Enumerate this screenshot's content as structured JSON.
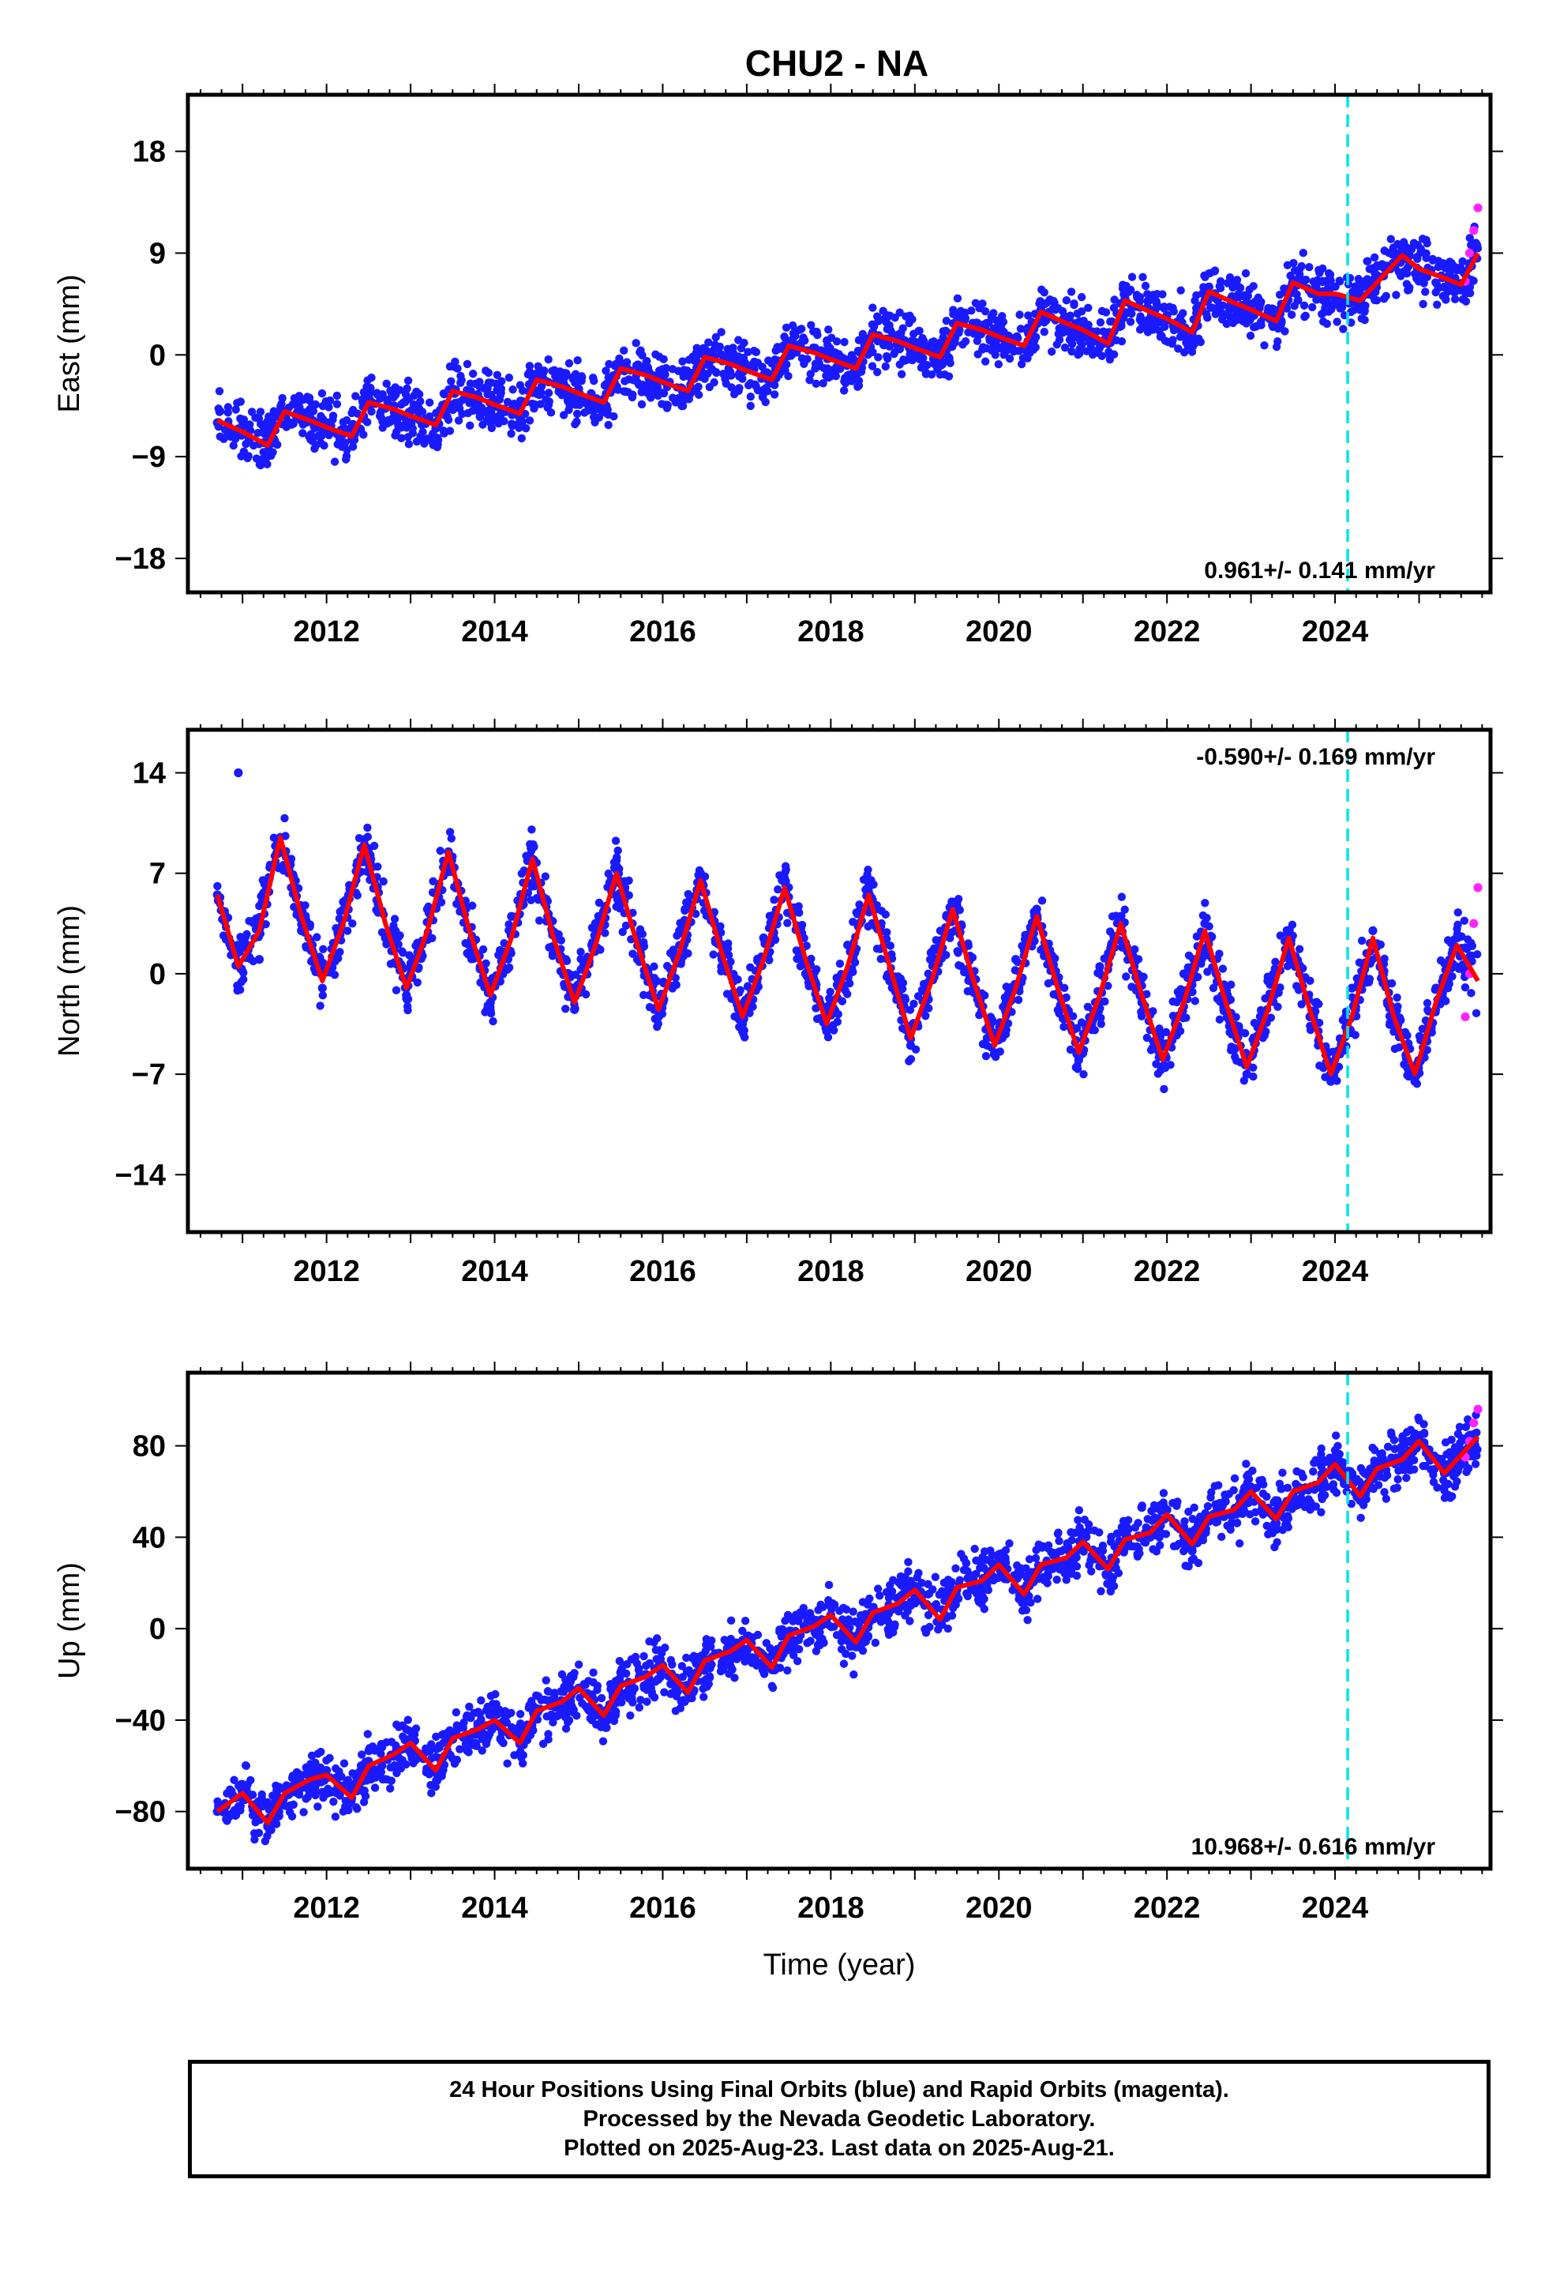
{
  "chart_data": [
    {
      "type": "scatter",
      "title": "CHU2 - NA",
      "ylabel": "East (mm)",
      "xlabel": "",
      "xlim": [
        2010.35,
        2025.85
      ],
      "ylim": [
        -21,
        23
      ],
      "yticks": [
        -18,
        -9,
        0,
        9,
        18
      ],
      "xticks": [
        2012,
        2014,
        2016,
        2018,
        2020,
        2022,
        2024
      ],
      "rate_label": "0.961+/- 0.141 mm/yr",
      "rate_position": "bottom-right",
      "equipment_change_year": 2024.15,
      "colors": {
        "final": "#1a1aff",
        "rapid": "#ff22ff",
        "model": "#ff0000",
        "event": "#00e5e5"
      },
      "series": [
        {
          "name": "Final Orbits",
          "x": [
            2010.7,
            2011.0,
            2011.3,
            2011.5,
            2011.8,
            2012.0,
            2012.3,
            2012.5,
            2012.8,
            2013.0,
            2013.3,
            2013.5,
            2013.8,
            2014.0,
            2014.3,
            2014.5,
            2014.8,
            2015.0,
            2015.3,
            2015.5,
            2015.8,
            2016.0,
            2016.3,
            2016.5,
            2016.8,
            2017.0,
            2017.3,
            2017.5,
            2017.8,
            2018.0,
            2018.3,
            2018.5,
            2018.8,
            2019.0,
            2019.3,
            2019.5,
            2019.8,
            2020.0,
            2020.3,
            2020.5,
            2020.8,
            2021.0,
            2021.3,
            2021.5,
            2021.8,
            2022.0,
            2022.3,
            2022.5,
            2022.8,
            2023.0,
            2023.3,
            2023.5,
            2023.8,
            2024.0,
            2024.3,
            2024.5,
            2024.8,
            2025.0,
            2025.3,
            2025.5
          ],
          "values": [
            -6.0,
            -7.0,
            -8.5,
            -5.0,
            -5.5,
            -6.0,
            -7.5,
            -4.0,
            -4.5,
            -5.0,
            -6.5,
            -3.0,
            -3.5,
            -4.0,
            -5.5,
            -2.0,
            -2.5,
            -3.0,
            -4.5,
            -1.0,
            -1.5,
            -2.0,
            -3.5,
            0.0,
            -0.5,
            -1.0,
            -2.5,
            1.0,
            0.5,
            0.0,
            -1.5,
            2.0,
            1.5,
            1.0,
            -0.5,
            3.0,
            2.5,
            2.0,
            0.5,
            4.0,
            3.0,
            2.5,
            1.0,
            5.0,
            4.0,
            3.5,
            2.0,
            6.0,
            5.0,
            4.5,
            3.0,
            6.5,
            5.5,
            5.0,
            4.0,
            7.0,
            8.5,
            7.5,
            6.0,
            7.5
          ]
        },
        {
          "name": "Rapid Orbits",
          "x": [
            2025.55,
            2025.6,
            2025.65,
            2025.7
          ],
          "values": [
            6.5,
            9.0,
            11.0,
            13.0
          ]
        },
        {
          "name": "Model",
          "x": [
            2010.7,
            2011.0,
            2011.3,
            2011.5,
            2011.8,
            2012.0,
            2012.3,
            2012.5,
            2012.8,
            2013.0,
            2013.3,
            2013.5,
            2013.8,
            2014.0,
            2014.3,
            2014.5,
            2014.8,
            2015.0,
            2015.3,
            2015.5,
            2015.8,
            2016.0,
            2016.3,
            2016.5,
            2016.8,
            2017.0,
            2017.3,
            2017.5,
            2017.8,
            2018.0,
            2018.3,
            2018.5,
            2018.8,
            2019.0,
            2019.3,
            2019.5,
            2019.8,
            2020.0,
            2020.3,
            2020.5,
            2020.8,
            2021.0,
            2021.3,
            2021.5,
            2021.8,
            2022.0,
            2022.3,
            2022.5,
            2022.8,
            2023.0,
            2023.3,
            2023.5,
            2023.8,
            2024.0,
            2024.3,
            2024.5,
            2024.8,
            2025.0,
            2025.3,
            2025.5,
            2025.7
          ],
          "values": [
            -5.8,
            -6.8,
            -8.0,
            -5.0,
            -5.8,
            -6.4,
            -7.2,
            -4.2,
            -4.8,
            -5.4,
            -6.2,
            -3.2,
            -3.8,
            -4.4,
            -5.2,
            -2.2,
            -2.8,
            -3.4,
            -4.2,
            -1.2,
            -1.8,
            -2.4,
            -3.2,
            -0.2,
            -0.8,
            -1.4,
            -2.2,
            0.8,
            0.2,
            -0.4,
            -1.2,
            1.8,
            1.2,
            0.6,
            -0.2,
            2.8,
            2.2,
            1.6,
            0.8,
            3.8,
            2.8,
            2.2,
            1.0,
            4.8,
            3.8,
            3.2,
            2.0,
            5.6,
            4.6,
            4.0,
            3.0,
            6.4,
            5.4,
            5.4,
            4.8,
            6.4,
            8.8,
            7.6,
            6.8,
            6.2,
            9.0
          ]
        }
      ]
    },
    {
      "type": "scatter",
      "ylabel": "North (mm)",
      "xlabel": "",
      "xlim": [
        2010.35,
        2025.85
      ],
      "ylim": [
        -18,
        17
      ],
      "yticks": [
        -14,
        -7,
        0,
        7,
        14
      ],
      "xticks": [
        2012,
        2014,
        2016,
        2018,
        2020,
        2022,
        2024
      ],
      "rate_label": "-0.590+/- 0.169 mm/yr",
      "rate_position": "top-right",
      "equipment_change_year": 2024.15,
      "colors": {
        "final": "#1a1aff",
        "rapid": "#ff22ff",
        "model": "#ff0000",
        "event": "#00e5e5"
      },
      "series": [
        {
          "name": "Final Orbits",
          "x": [
            2010.7,
            2010.95,
            2011.2,
            2011.45,
            2011.7,
            2011.95,
            2012.2,
            2012.45,
            2012.7,
            2012.95,
            2013.2,
            2013.45,
            2013.7,
            2013.95,
            2014.2,
            2014.45,
            2014.7,
            2014.95,
            2015.2,
            2015.45,
            2015.7,
            2015.95,
            2016.2,
            2016.45,
            2016.7,
            2016.95,
            2017.2,
            2017.45,
            2017.7,
            2017.95,
            2018.2,
            2018.45,
            2018.7,
            2018.95,
            2019.2,
            2019.45,
            2019.7,
            2019.95,
            2020.2,
            2020.45,
            2020.7,
            2020.95,
            2021.2,
            2021.45,
            2021.7,
            2021.95,
            2022.2,
            2022.45,
            2022.7,
            2022.95,
            2023.2,
            2023.45,
            2023.7,
            2023.95,
            2024.2,
            2024.45,
            2024.7,
            2024.95,
            2025.2,
            2025.45
          ],
          "values": [
            5.5,
            14.0,
            1.0,
            9.5,
            3.0,
            -1.0,
            5.0,
            9.0,
            2.5,
            -1.5,
            4.5,
            8.5,
            2.0,
            -2.0,
            4.0,
            8.0,
            1.5,
            -2.5,
            3.5,
            7.5,
            1.0,
            -3.0,
            3.0,
            7.0,
            0.5,
            -3.5,
            2.5,
            6.5,
            0.0,
            -4.0,
            2.0,
            6.0,
            -0.5,
            -5.0,
            1.5,
            5.0,
            -1.0,
            -5.5,
            1.0,
            4.5,
            -1.5,
            -6.0,
            0.5,
            4.0,
            -2.0,
            -6.5,
            0.0,
            3.5,
            -2.5,
            -7.0,
            -0.5,
            3.0,
            -3.0,
            -7.5,
            -1.0,
            3.0,
            -3.5,
            -7.5,
            -1.0,
            2.5
          ]
        },
        {
          "name": "Rapid Orbits",
          "x": [
            2025.55,
            2025.6,
            2025.65,
            2025.7
          ],
          "values": [
            -3.0,
            0.0,
            3.5,
            6.0
          ]
        },
        {
          "name": "Model",
          "x": [
            2010.7,
            2010.95,
            2011.2,
            2011.45,
            2011.7,
            2011.95,
            2012.2,
            2012.45,
            2012.7,
            2012.95,
            2013.2,
            2013.45,
            2013.7,
            2013.95,
            2014.2,
            2014.45,
            2014.7,
            2014.95,
            2015.2,
            2015.45,
            2015.7,
            2015.95,
            2016.2,
            2016.45,
            2016.7,
            2016.95,
            2017.2,
            2017.45,
            2017.7,
            2017.95,
            2018.2,
            2018.45,
            2018.7,
            2018.95,
            2019.2,
            2019.45,
            2019.7,
            2019.95,
            2020.2,
            2020.45,
            2020.7,
            2020.95,
            2021.2,
            2021.45,
            2021.7,
            2021.95,
            2022.2,
            2022.45,
            2022.7,
            2022.95,
            2023.2,
            2023.45,
            2023.7,
            2023.95,
            2024.2,
            2024.45,
            2024.7,
            2024.95,
            2025.2,
            2025.45,
            2025.7
          ],
          "values": [
            5.5,
            0.5,
            3.0,
            9.5,
            4.0,
            -0.5,
            3.5,
            9.0,
            3.5,
            -1.0,
            3.0,
            8.5,
            3.0,
            -1.5,
            2.5,
            8.0,
            2.5,
            -2.0,
            2.0,
            7.0,
            2.0,
            -2.5,
            1.5,
            6.5,
            1.5,
            -3.0,
            1.0,
            6.0,
            1.0,
            -3.5,
            0.5,
            5.5,
            0.5,
            -4.5,
            -0.5,
            4.5,
            -0.5,
            -5.0,
            -1.0,
            4.0,
            -1.0,
            -5.5,
            -1.5,
            3.5,
            -1.5,
            -6.0,
            -2.0,
            3.0,
            -2.0,
            -6.5,
            -2.5,
            2.5,
            -2.5,
            -7.0,
            -3.0,
            2.5,
            -3.0,
            -7.0,
            -2.0,
            2.0,
            -0.5
          ]
        }
      ]
    },
    {
      "type": "scatter",
      "ylabel": "Up (mm)",
      "xlabel": "Time (year)",
      "xlim": [
        2010.35,
        2025.85
      ],
      "ylim": [
        -105,
        112
      ],
      "yticks": [
        -80,
        -40,
        0,
        40,
        80
      ],
      "xticks": [
        2012,
        2014,
        2016,
        2018,
        2020,
        2022,
        2024
      ],
      "rate_label": "10.968+/- 0.616 mm/yr",
      "rate_position": "bottom-right",
      "equipment_change_year": 2024.15,
      "colors": {
        "final": "#1a1aff",
        "rapid": "#ff22ff",
        "model": "#ff0000",
        "event": "#00e5e5"
      },
      "series": [
        {
          "name": "Final Orbits",
          "x": [
            2010.7,
            2011.0,
            2011.3,
            2011.5,
            2011.8,
            2012.0,
            2012.3,
            2012.5,
            2012.8,
            2013.0,
            2013.3,
            2013.5,
            2013.8,
            2014.0,
            2014.3,
            2014.5,
            2014.8,
            2015.0,
            2015.3,
            2015.5,
            2015.8,
            2016.0,
            2016.3,
            2016.5,
            2016.8,
            2017.0,
            2017.3,
            2017.5,
            2017.8,
            2018.0,
            2018.3,
            2018.5,
            2018.8,
            2019.0,
            2019.3,
            2019.5,
            2019.8,
            2020.0,
            2020.3,
            2020.5,
            2020.8,
            2021.0,
            2021.3,
            2021.5,
            2021.8,
            2022.0,
            2022.3,
            2022.5,
            2022.8,
            2023.0,
            2023.3,
            2023.5,
            2023.8,
            2024.0,
            2024.3,
            2024.5,
            2024.8,
            2025.0,
            2025.3,
            2025.5
          ],
          "values": [
            -80,
            -72,
            -86,
            -70,
            -66,
            -62,
            -74,
            -58,
            -55,
            -50,
            -62,
            -47,
            -43,
            -38,
            -50,
            -35,
            -32,
            -26,
            -38,
            -24,
            -20,
            -16,
            -28,
            -13,
            -10,
            -4,
            -18,
            -3,
            0,
            6,
            -8,
            7,
            10,
            18,
            4,
            17,
            20,
            30,
            14,
            27,
            30,
            42,
            24,
            37,
            40,
            52,
            34,
            47,
            50,
            62,
            46,
            58,
            62,
            72,
            56,
            70,
            74,
            82,
            68,
            78
          ]
        },
        {
          "name": "Rapid Orbits",
          "x": [
            2025.55,
            2025.6,
            2025.65,
            2025.7
          ],
          "values": [
            75,
            82,
            90,
            96
          ]
        },
        {
          "name": "Model",
          "x": [
            2010.7,
            2011.0,
            2011.3,
            2011.5,
            2011.8,
            2012.0,
            2012.3,
            2012.5,
            2012.8,
            2013.0,
            2013.3,
            2013.5,
            2013.8,
            2014.0,
            2014.3,
            2014.5,
            2014.8,
            2015.0,
            2015.3,
            2015.5,
            2015.8,
            2016.0,
            2016.3,
            2016.5,
            2016.8,
            2017.0,
            2017.3,
            2017.5,
            2017.8,
            2018.0,
            2018.3,
            2018.5,
            2018.8,
            2019.0,
            2019.3,
            2019.5,
            2019.8,
            2020.0,
            2020.3,
            2020.5,
            2020.8,
            2021.0,
            2021.3,
            2021.5,
            2021.8,
            2022.0,
            2022.3,
            2022.5,
            2022.8,
            2023.0,
            2023.3,
            2023.5,
            2023.8,
            2024.0,
            2024.3,
            2024.5,
            2024.8,
            2025.0,
            2025.3,
            2025.5,
            2025.7
          ],
          "values": [
            -80,
            -72,
            -85,
            -72,
            -66,
            -64,
            -74,
            -60,
            -55,
            -50,
            -62,
            -48,
            -44,
            -40,
            -50,
            -36,
            -32,
            -26,
            -38,
            -25,
            -21,
            -16,
            -28,
            -14,
            -10,
            -5,
            -17,
            -3,
            1,
            6,
            -6,
            7,
            11,
            17,
            4,
            18,
            21,
            28,
            15,
            28,
            31,
            38,
            26,
            39,
            42,
            50,
            37,
            49,
            52,
            60,
            48,
            60,
            64,
            72,
            58,
            70,
            74,
            82,
            68,
            76,
            84
          ]
        }
      ]
    }
  ],
  "footer": {
    "lines": [
      "24 Hour Positions Using Final Orbits (blue) and Rapid Orbits (magenta).",
      "Processed by the Nevada Geodetic Laboratory.",
      "Plotted on 2025-Aug-23. Last data on 2025-Aug-21."
    ]
  }
}
